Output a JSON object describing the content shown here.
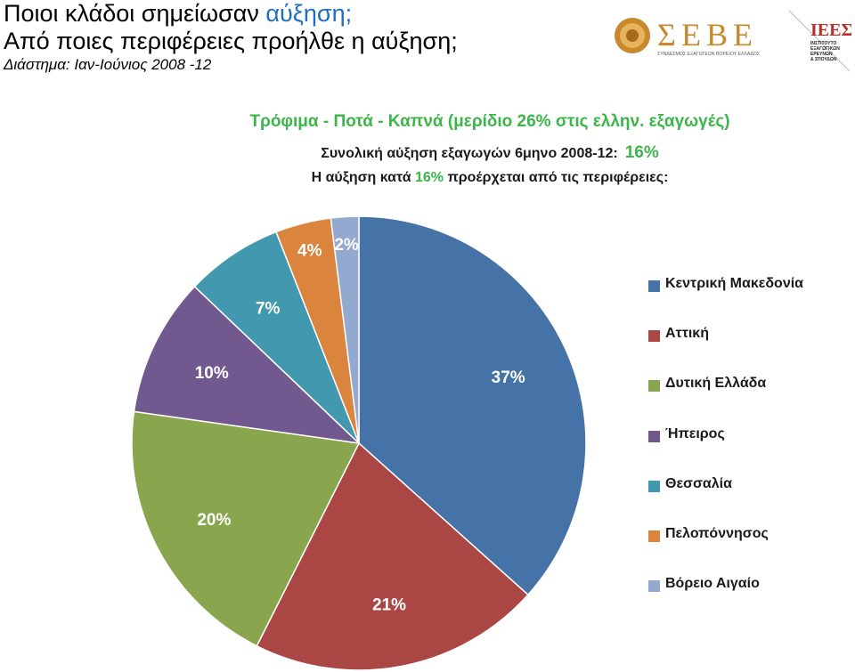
{
  "header": {
    "title_line1_prefix": "Ποιοι κλάδοι σημείωσαν",
    "title_line1_accent": "αύξηση;",
    "title_line2": "Από ποιες περιφέρειες προήλθε η αύξηση;",
    "period": "Διάστημα: Ιαν-Ιούνιος 2008 -12"
  },
  "logos": {
    "seve_text": "ΣΕΒΕ",
    "seve_caption": "ΣΥΝΔΕΣΜΟΣ ΕΞΑΓΩΓΕΩΝ ΒΟΡΕΙΟΥ ΕΛΛΑΔΟΣ",
    "ieve_text": "ΙΕΕΣ",
    "ieve_caption_1": "ΙΝΣΤΙΤΟΥΤΟ",
    "ieve_caption_2": "ΕΞΑΓΩΓΙΚΩΝ",
    "ieve_caption_3": "ΕΡΕΥΝΩΝ",
    "ieve_caption_4": "& ΣΠΟΥΔΩΝ"
  },
  "subtitle": {
    "line1": "Τρόφιμα - Ποτά - Καπνά (μερίδιο  26% στις ελλην. εξαγωγές)",
    "line2_text": "Συνολική αύξηση εξαγωγών 6μηνο 2008-12:",
    "line2_pct": "16%",
    "line3_prefix": "Η αύξηση κατά",
    "line3_pct": "16%",
    "line3_suffix": "προέρχεται από τις περιφέρειες:"
  },
  "chart_data": {
    "type": "pie",
    "categories": [
      "Κεντρική Μακεδονία",
      "Αττική",
      "Δυτική Ελλάδα",
      "Ήπειρος",
      "Θεσσαλία",
      "Πελοπόννησος",
      "Βόρειο Αιγαίο"
    ],
    "values": [
      37,
      21,
      20,
      10,
      7,
      4,
      2
    ],
    "labels": [
      "37%",
      "21%",
      "20%",
      "10%",
      "7%",
      "4%",
      "2%"
    ],
    "colors": [
      "#4572a7",
      "#aa4643",
      "#89a54e",
      "#71588f",
      "#4198af",
      "#db843d",
      "#93a9cf"
    ],
    "start": "12 o'clock",
    "direction": "clockwise",
    "legend_position": "right"
  }
}
